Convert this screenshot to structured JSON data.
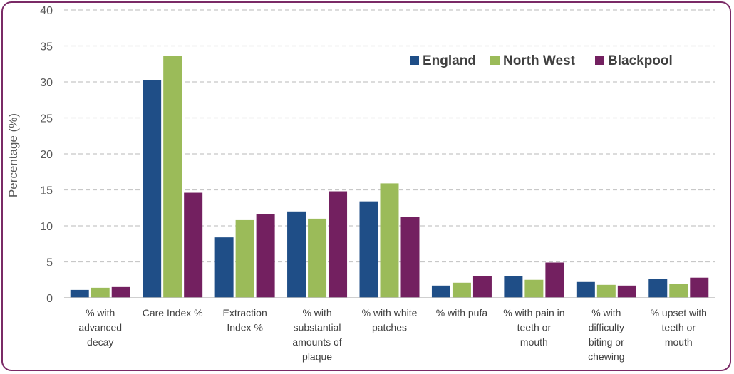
{
  "chart_data": {
    "type": "bar",
    "title": "",
    "xlabel": "",
    "ylabel": "Percentage (%)",
    "ylim": [
      0,
      40
    ],
    "yticks": [
      0,
      5,
      10,
      15,
      20,
      25,
      30,
      35,
      40
    ],
    "grid": true,
    "legend_position": "top-right",
    "categories": [
      [
        "% with",
        "advanced",
        "decay"
      ],
      [
        "Care Index %"
      ],
      [
        "Extraction",
        "Index %"
      ],
      [
        "% with",
        "substantial",
        "amounts of",
        "plaque"
      ],
      [
        "% with white",
        "patches"
      ],
      [
        "% with pufa"
      ],
      [
        "% with pain in",
        "teeth or",
        "mouth"
      ],
      [
        "% with",
        "difficulty",
        "biting or",
        "chewing"
      ],
      [
        "% upset with",
        "teeth or",
        "mouth"
      ]
    ],
    "series": [
      {
        "name": "England",
        "color": "#1f4e87",
        "values": [
          1.1,
          30.2,
          8.4,
          12.0,
          13.4,
          1.7,
          3.0,
          2.2,
          2.6
        ]
      },
      {
        "name": "North West",
        "color": "#9bbb59",
        "values": [
          1.4,
          33.6,
          10.8,
          11.0,
          15.9,
          2.1,
          2.5,
          1.8,
          1.9
        ]
      },
      {
        "name": "Blackpool",
        "color": "#732060",
        "values": [
          1.5,
          14.6,
          11.6,
          14.8,
          11.2,
          3.0,
          4.9,
          1.7,
          2.8
        ]
      }
    ]
  }
}
